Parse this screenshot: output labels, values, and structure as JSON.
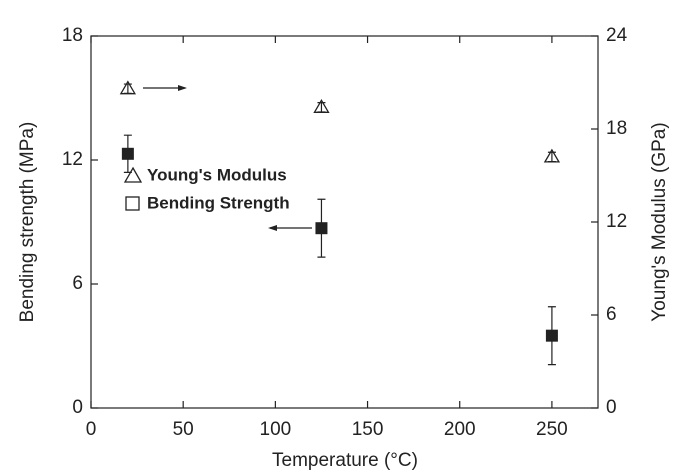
{
  "chart_data": {
    "type": "scatter",
    "x_label": "Temperature (°C)",
    "y_label": "Bending strength (MPa)",
    "y2_label": "Young's Modulus (GPa)",
    "x": [
      20,
      125,
      250
    ],
    "series": [
      {
        "name": "Young's Modulus",
        "color": "#222222",
        "marker": "open-triangle",
        "axis": "y2",
        "values": [
          20.6,
          19.4,
          16.2
        ],
        "errors": [
          0.3,
          0.3,
          0.3
        ]
      },
      {
        "name": "Bending Strength",
        "color": "#222222",
        "marker": "filled-square",
        "values": [
          12.3,
          8.7,
          3.5
        ],
        "errors": [
          0.9,
          1.4,
          1.4
        ]
      }
    ],
    "xlim": [
      0,
      275
    ],
    "xticks": [
      0,
      50,
      100,
      150,
      200,
      250
    ],
    "ylim": [
      0,
      18
    ],
    "yticks": [
      0,
      6,
      12,
      18
    ],
    "y2lim": [
      0,
      24
    ],
    "y2ticks": [
      0,
      6,
      12,
      18,
      24
    ],
    "grid": false
  }
}
